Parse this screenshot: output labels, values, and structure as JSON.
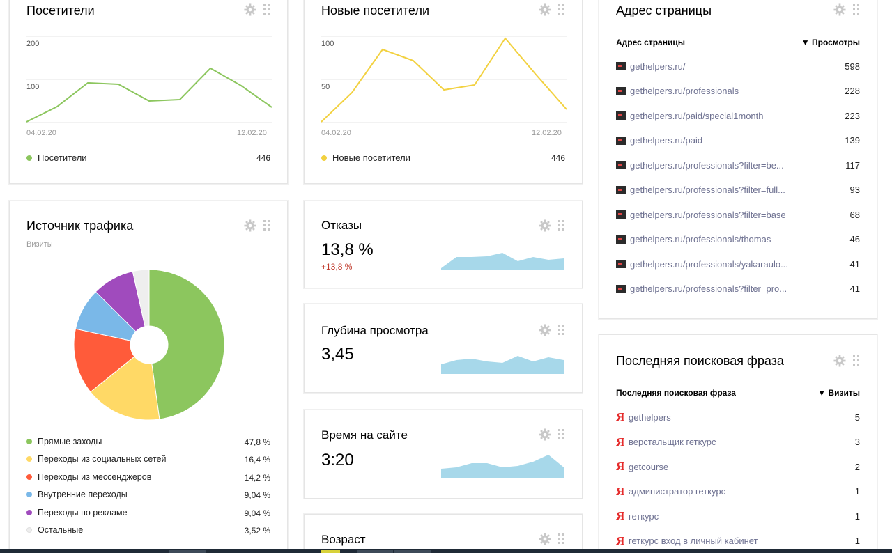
{
  "visitors": {
    "title": "Посетители",
    "y_ticks": [
      "200",
      "100"
    ],
    "x_start": "04.02.20",
    "x_end": "12.02.20",
    "legend_label": "Посетители",
    "legend_value": "446",
    "color": "#8cc65e"
  },
  "new_visitors": {
    "title": "Новые посетители",
    "y_ticks": [
      "100",
      "50"
    ],
    "x_start": "04.02.20",
    "x_end": "12.02.20",
    "legend_label": "Новые посетители",
    "legend_value": "446",
    "color": "#f2d140"
  },
  "traffic": {
    "title": "Источник трафика",
    "subtitle": "Визиты",
    "items": [
      {
        "label": "Прямые заходы",
        "value": "47,8 %",
        "color": "#8cc65e"
      },
      {
        "label": "Переходы из социальных сетей",
        "value": "16,4 %",
        "color": "#ffd966"
      },
      {
        "label": "Переходы из мессенджеров",
        "value": "14,2 %",
        "color": "#ff5b3a"
      },
      {
        "label": "Внутренние переходы",
        "value": "9,04 %",
        "color": "#7ab8e8"
      },
      {
        "label": "Переходы по рекламе",
        "value": "9,04 %",
        "color": "#a04bbd"
      },
      {
        "label": "Остальные",
        "value": "3,52 %",
        "color": "#eeeeee"
      }
    ]
  },
  "bounces": {
    "title": "Отказы",
    "value": "13,8 %",
    "delta": "+13,8 %"
  },
  "depth": {
    "title": "Глубина просмотра",
    "value": "3,45"
  },
  "time_on_site": {
    "title": "Время на сайте",
    "value": "3:20"
  },
  "age": {
    "title": "Возраст"
  },
  "pages": {
    "title": "Адрес страницы",
    "col_label": "Адрес страницы",
    "col_metric": "▼ Просмотры",
    "rows": [
      {
        "url": "gethelpers.ru/",
        "value": "598"
      },
      {
        "url": "gethelpers.ru/professionals",
        "value": "228"
      },
      {
        "url": "gethelpers.ru/paid/special1month",
        "value": "223"
      },
      {
        "url": "gethelpers.ru/paid",
        "value": "139"
      },
      {
        "url": "gethelpers.ru/professionals?filter=be...",
        "value": "117"
      },
      {
        "url": "gethelpers.ru/professionals?filter=full...",
        "value": "93"
      },
      {
        "url": "gethelpers.ru/professionals?filter=base",
        "value": "68"
      },
      {
        "url": "gethelpers.ru/professionals/thomas",
        "value": "46"
      },
      {
        "url": "gethelpers.ru/professionals/yakaraulo...",
        "value": "41"
      },
      {
        "url": "gethelpers.ru/professionals?filter=pro...",
        "value": "41"
      }
    ]
  },
  "search": {
    "title": "Последняя поисковая фраза",
    "col_label": "Последняя поисковая фраза",
    "col_metric": "▼ Визиты",
    "icon": "Я",
    "rows": [
      {
        "phrase": "gethelpers",
        "value": "5"
      },
      {
        "phrase": "верстальщик геткурс",
        "value": "3"
      },
      {
        "phrase": "getcourse",
        "value": "2"
      },
      {
        "phrase": "администратор геткурс",
        "value": "1"
      },
      {
        "phrase": "геткурс",
        "value": "1"
      },
      {
        "phrase": "геткурс вход в личный кабинет",
        "value": "1"
      }
    ]
  }
}
